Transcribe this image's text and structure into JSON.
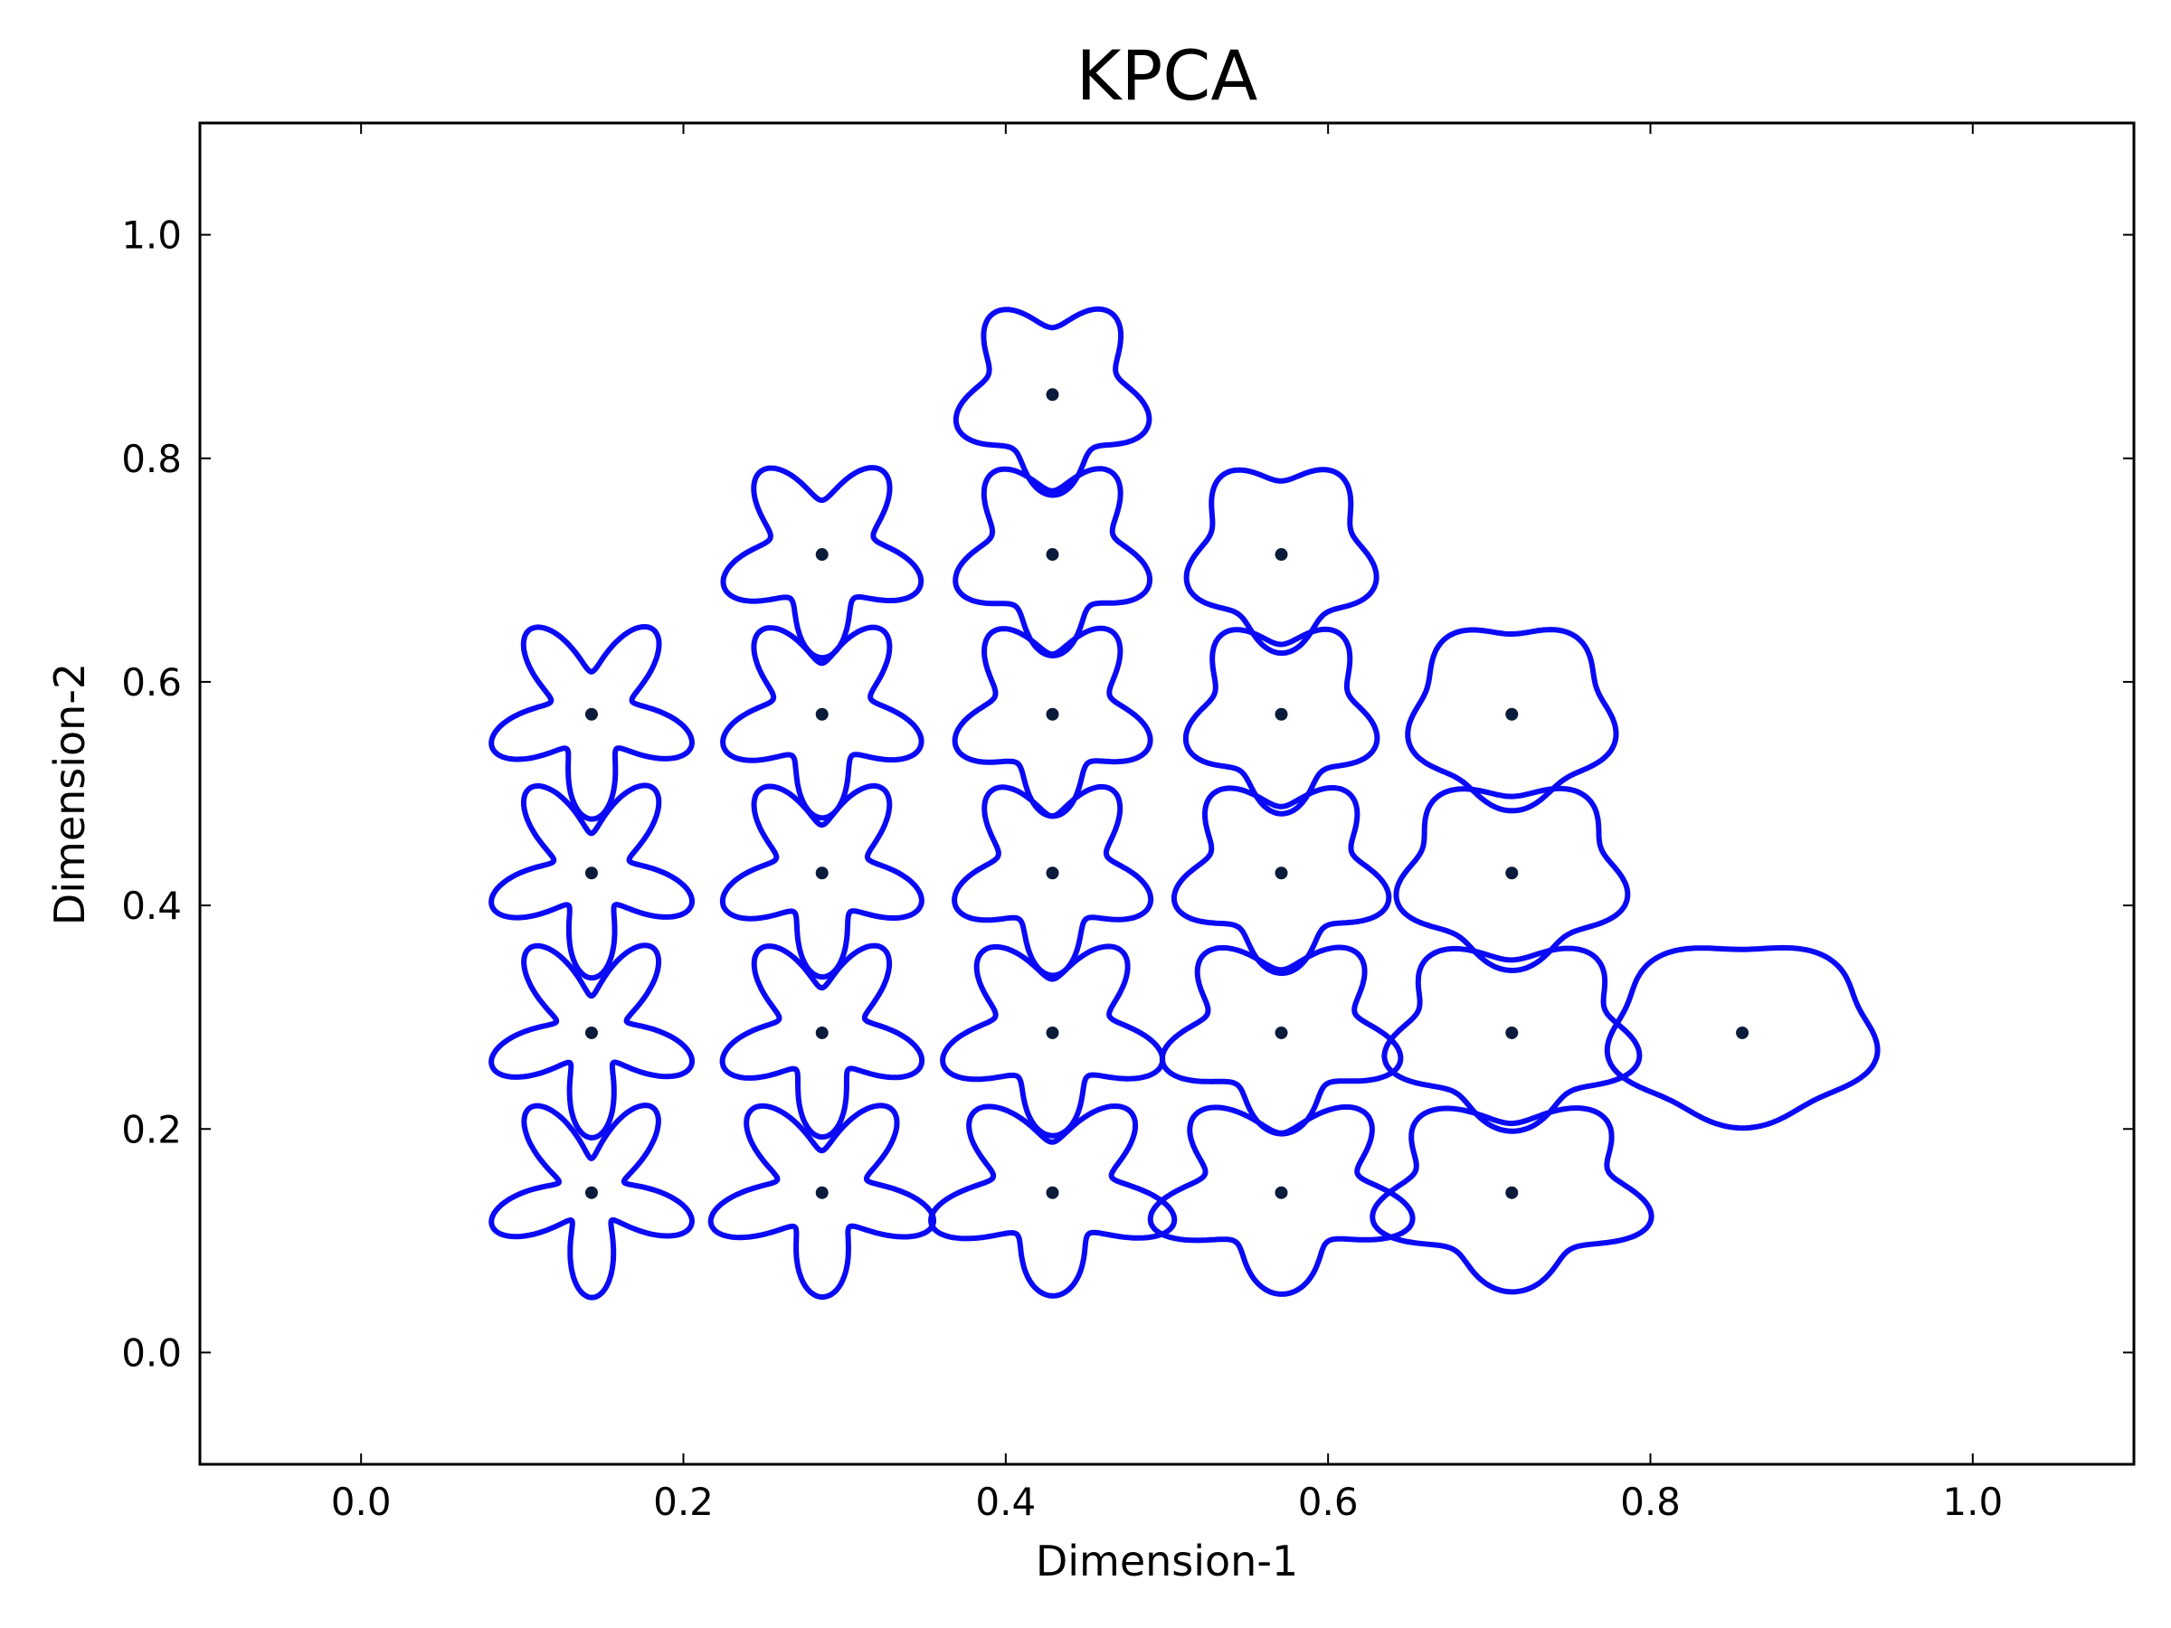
{
  "chart_data": {
    "type": "scatter",
    "title": "KPCA",
    "xlabel": "Dimension-1",
    "ylabel": "Dimension-2",
    "xlim": [
      -0.1,
      1.1
    ],
    "ylim": [
      -0.1,
      1.1
    ],
    "grid": false,
    "xticks": [
      "0.0",
      "0.2",
      "0.4",
      "0.6",
      "0.8",
      "1.0"
    ],
    "yticks": [
      "0.0",
      "0.2",
      "0.4",
      "0.6",
      "0.8",
      "1.0"
    ],
    "xtick_values": [
      0.0,
      0.2,
      0.4,
      0.6,
      0.8,
      1.0
    ],
    "ytick_values": [
      0.0,
      0.2,
      0.4,
      0.6,
      0.8,
      1.0
    ],
    "colors": {
      "glyph": "#0a0af5",
      "point": "#0b1b3b"
    },
    "points": [
      {
        "x": 0.143,
        "y": 0.143
      },
      {
        "x": 0.286,
        "y": 0.143
      },
      {
        "x": 0.429,
        "y": 0.143
      },
      {
        "x": 0.571,
        "y": 0.143
      },
      {
        "x": 0.714,
        "y": 0.143
      },
      {
        "x": 0.143,
        "y": 0.286
      },
      {
        "x": 0.286,
        "y": 0.286
      },
      {
        "x": 0.429,
        "y": 0.286
      },
      {
        "x": 0.571,
        "y": 0.286
      },
      {
        "x": 0.714,
        "y": 0.286
      },
      {
        "x": 0.857,
        "y": 0.286
      },
      {
        "x": 0.143,
        "y": 0.429
      },
      {
        "x": 0.286,
        "y": 0.429
      },
      {
        "x": 0.429,
        "y": 0.429
      },
      {
        "x": 0.571,
        "y": 0.429
      },
      {
        "x": 0.714,
        "y": 0.429
      },
      {
        "x": 0.143,
        "y": 0.571
      },
      {
        "x": 0.286,
        "y": 0.571
      },
      {
        "x": 0.429,
        "y": 0.571
      },
      {
        "x": 0.571,
        "y": 0.571
      },
      {
        "x": 0.714,
        "y": 0.571
      },
      {
        "x": 0.286,
        "y": 0.714
      },
      {
        "x": 0.429,
        "y": 0.714
      },
      {
        "x": 0.571,
        "y": 0.714
      },
      {
        "x": 0.429,
        "y": 0.857
      }
    ]
  }
}
